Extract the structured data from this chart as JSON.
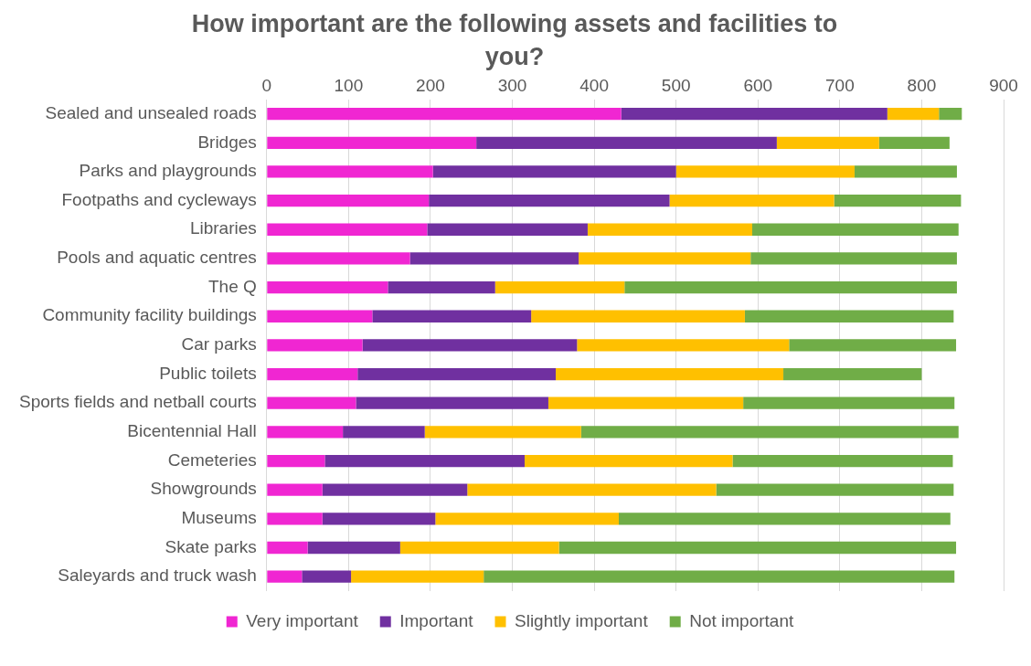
{
  "chart_data": {
    "type": "bar",
    "orientation": "horizontal",
    "stacked": true,
    "title": "How important are the following assets and facilities to you?",
    "categories": [
      "Sealed and unsealed roads",
      "Bridges",
      "Parks and playgrounds",
      "Footpaths and cycleways",
      "Libraries",
      "Pools and aquatic centres",
      "The Q",
      "Community facility buildings",
      "Car parks",
      "Public toilets",
      "Sports fields and netball courts",
      "Bicentennial Hall",
      "Cemeteries",
      "Showgrounds",
      "Museums",
      "Skate parks",
      "Saleyards and truck wash"
    ],
    "series": [
      {
        "name": "Very important",
        "color": "#f026d2",
        "values": [
          433,
          256,
          203,
          198,
          196,
          175,
          148,
          129,
          117,
          111,
          109,
          93,
          71,
          68,
          68,
          50,
          43
        ]
      },
      {
        "name": "Important",
        "color": "#7030a0",
        "values": [
          325,
          367,
          297,
          294,
          196,
          206,
          131,
          194,
          262,
          242,
          235,
          100,
          244,
          177,
          138,
          113,
          60
        ]
      },
      {
        "name": "Slightly important",
        "color": "#ffc000",
        "values": [
          63,
          125,
          218,
          201,
          201,
          210,
          158,
          261,
          259,
          278,
          238,
          191,
          254,
          304,
          224,
          194,
          162
        ]
      },
      {
        "name": "Not important",
        "color": "#70ad47",
        "values": [
          28,
          86,
          125,
          155,
          252,
          252,
          406,
          255,
          204,
          169,
          258,
          461,
          269,
          290,
          405,
          485,
          575
        ]
      }
    ],
    "xlim": [
      0,
      900
    ],
    "xticks": [
      0,
      100,
      200,
      300,
      400,
      500,
      600,
      700,
      800,
      900
    ],
    "grid": "x",
    "legend": "bottom"
  }
}
